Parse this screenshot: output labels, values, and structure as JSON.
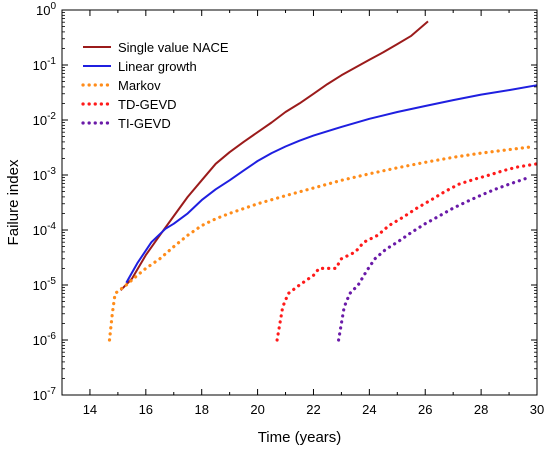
{
  "chart_data": {
    "type": "line",
    "title": "",
    "xlabel": "Time (years)",
    "ylabel": "Failure index",
    "xlim": [
      13,
      30
    ],
    "ylim": [
      1e-07,
      1
    ],
    "yscale": "log",
    "grid": false,
    "legend_position": "top-left",
    "x_ticks": [
      14,
      16,
      18,
      20,
      22,
      24,
      26,
      28,
      30
    ],
    "y_ticks": [
      {
        "value": 1e-07,
        "base": "10",
        "exp": "-7"
      },
      {
        "value": 1e-06,
        "base": "10",
        "exp": "-6"
      },
      {
        "value": 1e-05,
        "base": "10",
        "exp": "-5"
      },
      {
        "value": 0.0001,
        "base": "10",
        "exp": "-4"
      },
      {
        "value": 0.001,
        "base": "10",
        "exp": "-3"
      },
      {
        "value": 0.01,
        "base": "10",
        "exp": "-2"
      },
      {
        "value": 0.1,
        "base": "10",
        "exp": "-1"
      },
      {
        "value": 1,
        "base": "10",
        "exp": "0"
      }
    ],
    "series": [
      {
        "name": "Single value NACE",
        "color": "#9b1b1b",
        "style": "solid",
        "points": [
          [
            15.1,
            8e-06
          ],
          [
            15.5,
            1.3e-05
          ],
          [
            16.0,
            3.5e-05
          ],
          [
            16.5,
            8e-05
          ],
          [
            17.0,
            0.00018
          ],
          [
            17.5,
            0.0004
          ],
          [
            18.0,
            0.0008
          ],
          [
            18.5,
            0.0016
          ],
          [
            19.0,
            0.0026
          ],
          [
            19.5,
            0.004
          ],
          [
            20.0,
            0.006
          ],
          [
            20.5,
            0.009
          ],
          [
            21.0,
            0.014
          ],
          [
            21.5,
            0.02
          ],
          [
            22.0,
            0.03
          ],
          [
            22.5,
            0.045
          ],
          [
            23.0,
            0.065
          ],
          [
            23.5,
            0.09
          ],
          [
            24.0,
            0.125
          ],
          [
            24.5,
            0.17
          ],
          [
            25.0,
            0.24
          ],
          [
            25.5,
            0.34
          ],
          [
            26.1,
            0.62
          ]
        ]
      },
      {
        "name": "Linear growth",
        "color": "#1f1fe0",
        "style": "solid",
        "points": [
          [
            15.3,
            1.1e-05
          ],
          [
            15.7,
            2.5e-05
          ],
          [
            16.2,
            6e-05
          ],
          [
            16.7,
            0.000105
          ],
          [
            17.0,
            0.00013
          ],
          [
            17.5,
            0.0002
          ],
          [
            18.0,
            0.00035
          ],
          [
            18.5,
            0.00055
          ],
          [
            19.0,
            0.0008
          ],
          [
            19.5,
            0.0012
          ],
          [
            20.0,
            0.0018
          ],
          [
            20.5,
            0.0025
          ],
          [
            21.0,
            0.0033
          ],
          [
            21.5,
            0.0042
          ],
          [
            22.0,
            0.0052
          ],
          [
            23.0,
            0.0075
          ],
          [
            24.0,
            0.0105
          ],
          [
            25.0,
            0.014
          ],
          [
            26.0,
            0.018
          ],
          [
            27.0,
            0.023
          ],
          [
            28.0,
            0.029
          ],
          [
            29.0,
            0.035
          ],
          [
            30.0,
            0.043
          ]
        ]
      },
      {
        "name": "Markov",
        "color": "#ff8c1a",
        "style": "dotted",
        "points": [
          [
            14.7,
            1e-06
          ],
          [
            14.8,
            3e-06
          ],
          [
            14.9,
            7e-06
          ],
          [
            15.3,
            1e-05
          ],
          [
            15.7,
            1.5e-05
          ],
          [
            16.0,
            2e-05
          ],
          [
            16.5,
            3e-05
          ],
          [
            17.0,
            5e-05
          ],
          [
            17.5,
            8e-05
          ],
          [
            18.0,
            0.00012
          ],
          [
            18.5,
            0.00016
          ],
          [
            19.0,
            0.0002
          ],
          [
            20.0,
            0.0003
          ],
          [
            21.0,
            0.00042
          ],
          [
            22.0,
            0.00058
          ],
          [
            23.0,
            0.0008
          ],
          [
            24.0,
            0.00105
          ],
          [
            25.0,
            0.00135
          ],
          [
            26.0,
            0.0017
          ],
          [
            27.0,
            0.0021
          ],
          [
            28.0,
            0.0025
          ],
          [
            29.0,
            0.0029
          ],
          [
            29.7,
            0.0032
          ]
        ]
      },
      {
        "name": "TD-GEVD",
        "color": "#ff1a1a",
        "style": "dotted",
        "points": [
          [
            20.7,
            1e-06
          ],
          [
            20.8,
            2e-06
          ],
          [
            20.9,
            4e-06
          ],
          [
            21.1,
            7e-06
          ],
          [
            21.5,
            1e-05
          ],
          [
            22.0,
            1.5e-05
          ],
          [
            22.2,
            2e-05
          ],
          [
            22.8,
            2e-05
          ],
          [
            23.0,
            3e-05
          ],
          [
            23.5,
            4e-05
          ],
          [
            23.8,
            6e-05
          ],
          [
            24.3,
            8e-05
          ],
          [
            24.7,
            0.00012
          ],
          [
            25.2,
            0.00017
          ],
          [
            25.7,
            0.00025
          ],
          [
            26.2,
            0.00035
          ],
          [
            26.7,
            0.0005
          ],
          [
            27.2,
            0.00068
          ],
          [
            27.8,
            0.00085
          ],
          [
            28.3,
            0.001
          ],
          [
            28.8,
            0.0012
          ],
          [
            29.3,
            0.0014
          ],
          [
            30.0,
            0.0016
          ]
        ]
      },
      {
        "name": "TI-GEVD",
        "color": "#6a1aa8",
        "style": "dotted",
        "points": [
          [
            22.9,
            1e-06
          ],
          [
            23.0,
            2e-06
          ],
          [
            23.1,
            4e-06
          ],
          [
            23.3,
            7e-06
          ],
          [
            23.6,
            1e-05
          ],
          [
            23.9,
            1.8e-05
          ],
          [
            24.2,
            3e-05
          ],
          [
            24.6,
            4.5e-05
          ],
          [
            25.0,
            6e-05
          ],
          [
            25.5,
            9e-05
          ],
          [
            26.0,
            0.00013
          ],
          [
            26.5,
            0.00018
          ],
          [
            27.0,
            0.00025
          ],
          [
            27.5,
            0.00033
          ],
          [
            28.0,
            0.00043
          ],
          [
            28.5,
            0.00055
          ],
          [
            29.0,
            0.00068
          ],
          [
            29.5,
            0.00083
          ],
          [
            29.7,
            0.0009
          ]
        ]
      }
    ]
  }
}
